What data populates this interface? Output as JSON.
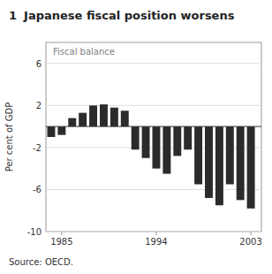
{
  "chart_data": {
    "type": "bar",
    "title": "Japanese fiscal position worsens",
    "title_number": "1",
    "y_label": "Per cent of GDP",
    "source": "Source: OECD.",
    "annotations": [
      "Fiscal balance"
    ],
    "x": [
      1984,
      1985,
      1986,
      1987,
      1988,
      1989,
      1990,
      1991,
      1992,
      1993,
      1994,
      1995,
      1996,
      1997,
      1998,
      1999,
      2000,
      2001,
      2002,
      2003
    ],
    "values": [
      -1.0,
      -0.8,
      0.8,
      1.3,
      2.0,
      2.1,
      1.8,
      1.5,
      -2.2,
      -3.0,
      -4.0,
      -4.5,
      -2.8,
      -2.2,
      -5.5,
      -6.8,
      -7.5,
      -5.5,
      -7.0,
      -7.8
    ],
    "color": "#2b2b2b",
    "xlim": [
      1983.5,
      2004.0
    ],
    "xticks": [
      1985,
      1994,
      2003
    ],
    "ylim": [
      -10,
      8
    ],
    "yticks": [
      -10,
      -6,
      -2,
      2,
      6
    ],
    "grid": true
  }
}
